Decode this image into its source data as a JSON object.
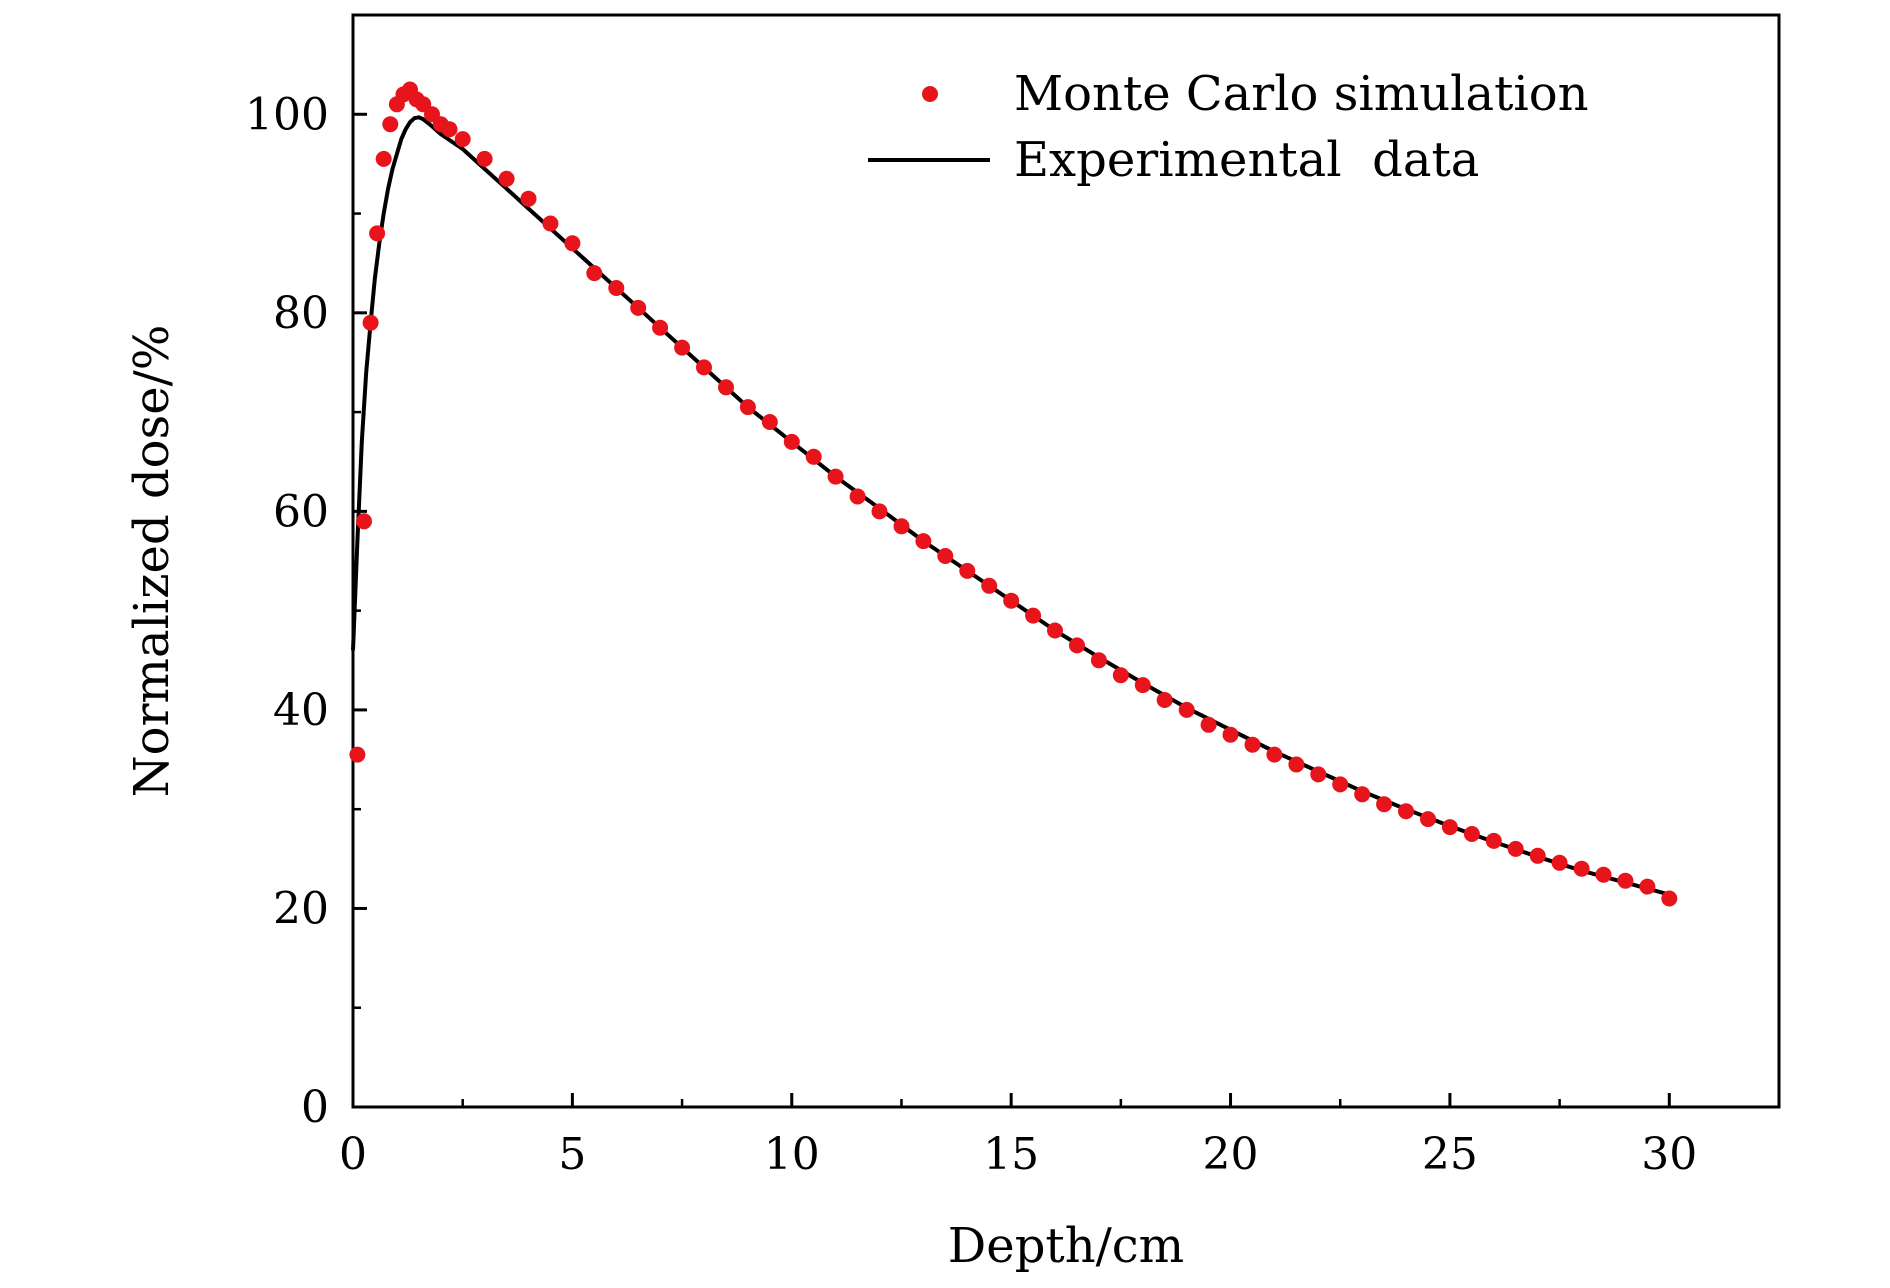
{
  "chart_data": {
    "type": "scatter",
    "title": "",
    "xlabel": "Depth/cm",
    "ylabel": "Normalized dose/%",
    "xlim": [
      0,
      32.5
    ],
    "ylim": [
      0,
      110
    ],
    "x_ticks": [
      0,
      5,
      10,
      15,
      20,
      25,
      30
    ],
    "y_ticks": [
      0,
      20,
      40,
      60,
      80,
      100
    ],
    "x_tick_labels": [
      "0",
      "5",
      "10",
      "15",
      "20",
      "25",
      "30"
    ],
    "y_tick_labels": [
      "0",
      "20",
      "40",
      "60",
      "80",
      "100"
    ],
    "grid": false,
    "legend_position": "top-right",
    "series": [
      {
        "name": "Monte Carlo simulation",
        "style": "scatter",
        "color": "#e8141b",
        "x": [
          0.1,
          0.25,
          0.4,
          0.55,
          0.7,
          0.85,
          1.0,
          1.15,
          1.3,
          1.45,
          1.6,
          1.8,
          2.0,
          2.2,
          2.5,
          3.0,
          3.5,
          4.0,
          4.5,
          5.0,
          5.5,
          6.0,
          6.5,
          7.0,
          7.5,
          8.0,
          8.5,
          9.0,
          9.5,
          10.0,
          10.5,
          11.0,
          11.5,
          12.0,
          12.5,
          13.0,
          13.5,
          14.0,
          14.5,
          15.0,
          15.5,
          16.0,
          16.5,
          17.0,
          17.5,
          18.0,
          18.5,
          19.0,
          19.5,
          20.0,
          20.5,
          21.0,
          21.5,
          22.0,
          22.5,
          23.0,
          23.5,
          24.0,
          24.5,
          25.0,
          25.5,
          26.0,
          26.5,
          27.0,
          27.5,
          28.0,
          28.5,
          29.0,
          29.5,
          30.0
        ],
        "y": [
          35.5,
          59,
          79,
          88,
          95.5,
          99,
          101,
          102,
          102.5,
          101.5,
          101,
          100,
          99,
          98.5,
          97.5,
          95.5,
          93.5,
          91.5,
          89,
          87,
          84,
          82.5,
          80.5,
          78.5,
          76.5,
          74.5,
          72.5,
          70.5,
          69,
          67,
          65.5,
          63.5,
          61.5,
          60,
          58.5,
          57,
          55.5,
          54,
          52.5,
          51,
          49.5,
          48,
          46.5,
          45,
          43.5,
          42.5,
          41,
          40,
          38.5,
          37.5,
          36.5,
          35.5,
          34.5,
          33.5,
          32.5,
          31.5,
          30.5,
          29.8,
          29,
          28.2,
          27.5,
          26.8,
          26,
          25.3,
          24.6,
          24,
          23.4,
          22.8,
          22.2,
          21
        ]
      },
      {
        "name": "Experimental  data",
        "style": "line",
        "color": "#000000",
        "x": [
          0,
          0.1,
          0.2,
          0.3,
          0.4,
          0.5,
          0.6,
          0.7,
          0.8,
          0.9,
          1.0,
          1.1,
          1.2,
          1.3,
          1.4,
          1.5,
          1.6,
          1.8,
          2.0,
          2.5,
          3.0,
          3.5,
          4.0,
          4.5,
          5.0,
          5.5,
          6.0,
          7.0,
          8.0,
          9.0,
          10.0,
          11.0,
          12.0,
          13.0,
          14.0,
          15.0,
          16.0,
          17.0,
          18.0,
          19.0,
          20.0,
          21.0,
          22.0,
          23.0,
          24.0,
          25.0,
          26.0,
          27.0,
          28.0,
          29.0,
          30.0
        ],
        "y": [
          46,
          57,
          67,
          74,
          79,
          83.5,
          87,
          90,
          92.5,
          94.5,
          96,
          97.5,
          98.5,
          99.2,
          99.6,
          99.7,
          99.5,
          98.8,
          98,
          96.5,
          94.5,
          92.5,
          90.5,
          88.5,
          86.5,
          84.5,
          82.5,
          78.5,
          74.5,
          70.5,
          67,
          63.5,
          60.3,
          57,
          54,
          51,
          48,
          45.3,
          42.7,
          40.2,
          38,
          35.8,
          33.8,
          31.8,
          30,
          28.3,
          26.7,
          25.2,
          23.8,
          22.6,
          21.4
        ]
      }
    ]
  }
}
